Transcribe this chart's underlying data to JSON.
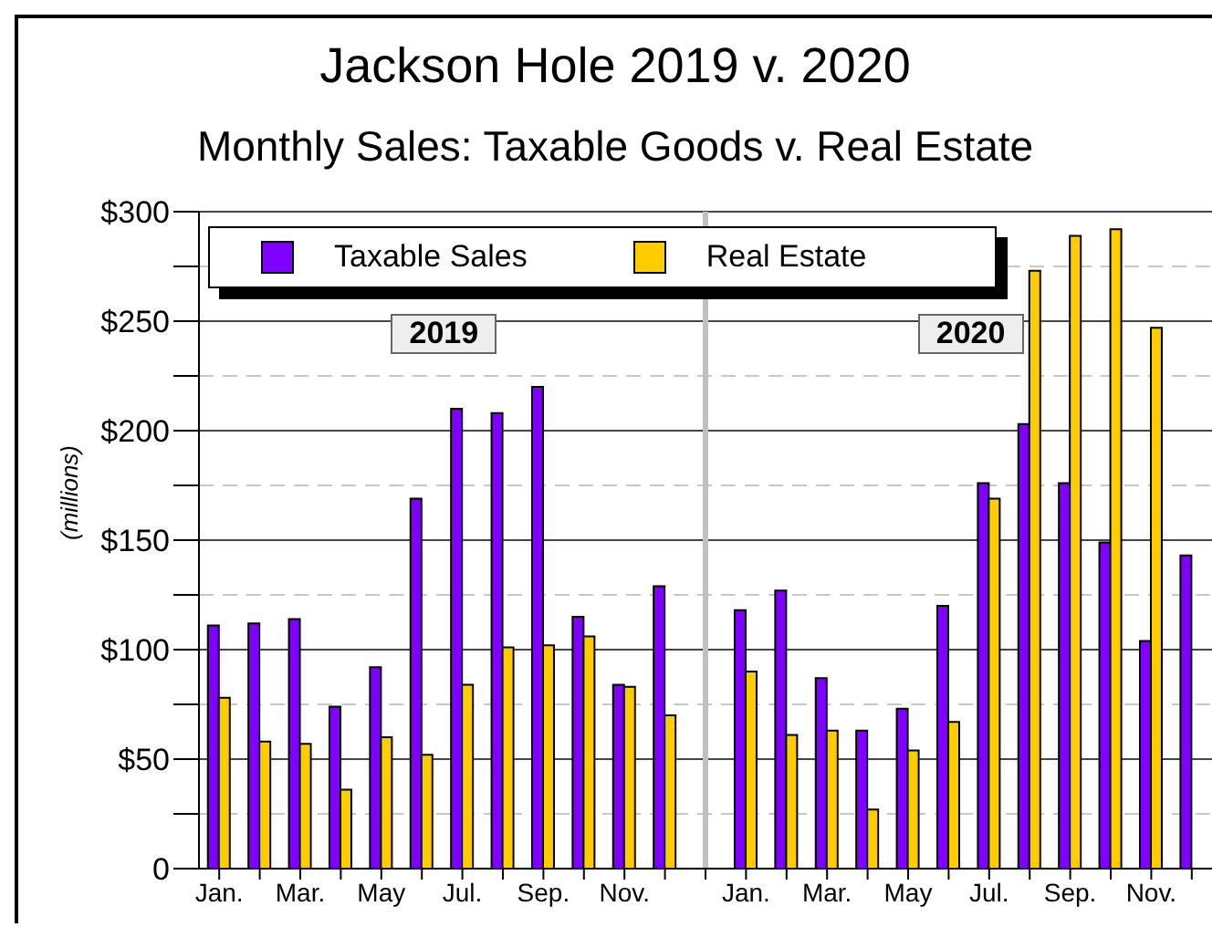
{
  "chart_data": {
    "type": "bar",
    "title": "Jackson Hole 2019 v. 2020",
    "subtitle": "Monthly Sales: Taxable Goods v. Real Estate",
    "ylabel": "(millions)",
    "categories": [
      "Jan.",
      null,
      "Mar.",
      null,
      "May",
      null,
      "Jul.",
      null,
      "Sep.",
      null,
      "Nov.",
      null,
      null,
      "Jan.",
      null,
      "Mar.",
      null,
      "May",
      null,
      "Jul.",
      null,
      "Sep.",
      null,
      "Nov.",
      null
    ],
    "series": [
      {
        "name": "Taxable Sales",
        "color": "#7f00ff",
        "values": [
          111,
          112,
          114,
          74,
          92,
          169,
          210,
          208,
          220,
          115,
          84,
          129,
          null,
          118,
          127,
          87,
          63,
          73,
          120,
          176,
          203,
          176,
          149,
          104,
          143
        ]
      },
      {
        "name": "Real Estate",
        "color": "#ffcc00",
        "values": [
          78,
          58,
          57,
          36,
          60,
          52,
          84,
          101,
          102,
          106,
          83,
          70,
          null,
          90,
          61,
          63,
          27,
          54,
          67,
          169,
          273,
          289,
          292,
          247,
          null
        ]
      }
    ],
    "ylim": [
      0,
      300
    ],
    "yticks": [
      0,
      {
        "value": 25,
        "label": null
      },
      {
        "value": 50,
        "label": "$50"
      },
      {
        "value": 75,
        "label": null
      },
      {
        "value": 100,
        "label": "$100"
      },
      {
        "value": 125,
        "label": null
      },
      {
        "value": 150,
        "label": "$150"
      },
      {
        "value": 175,
        "label": null
      },
      {
        "value": 200,
        "label": "$200"
      },
      {
        "value": 225,
        "label": null
      },
      {
        "value": 250,
        "label": "$250"
      },
      {
        "value": 275,
        "label": null
      },
      {
        "value": 300,
        "label": "$300"
      }
    ],
    "annotations": [
      "2019",
      "2020"
    ],
    "grid": "y",
    "legend": "top left"
  }
}
